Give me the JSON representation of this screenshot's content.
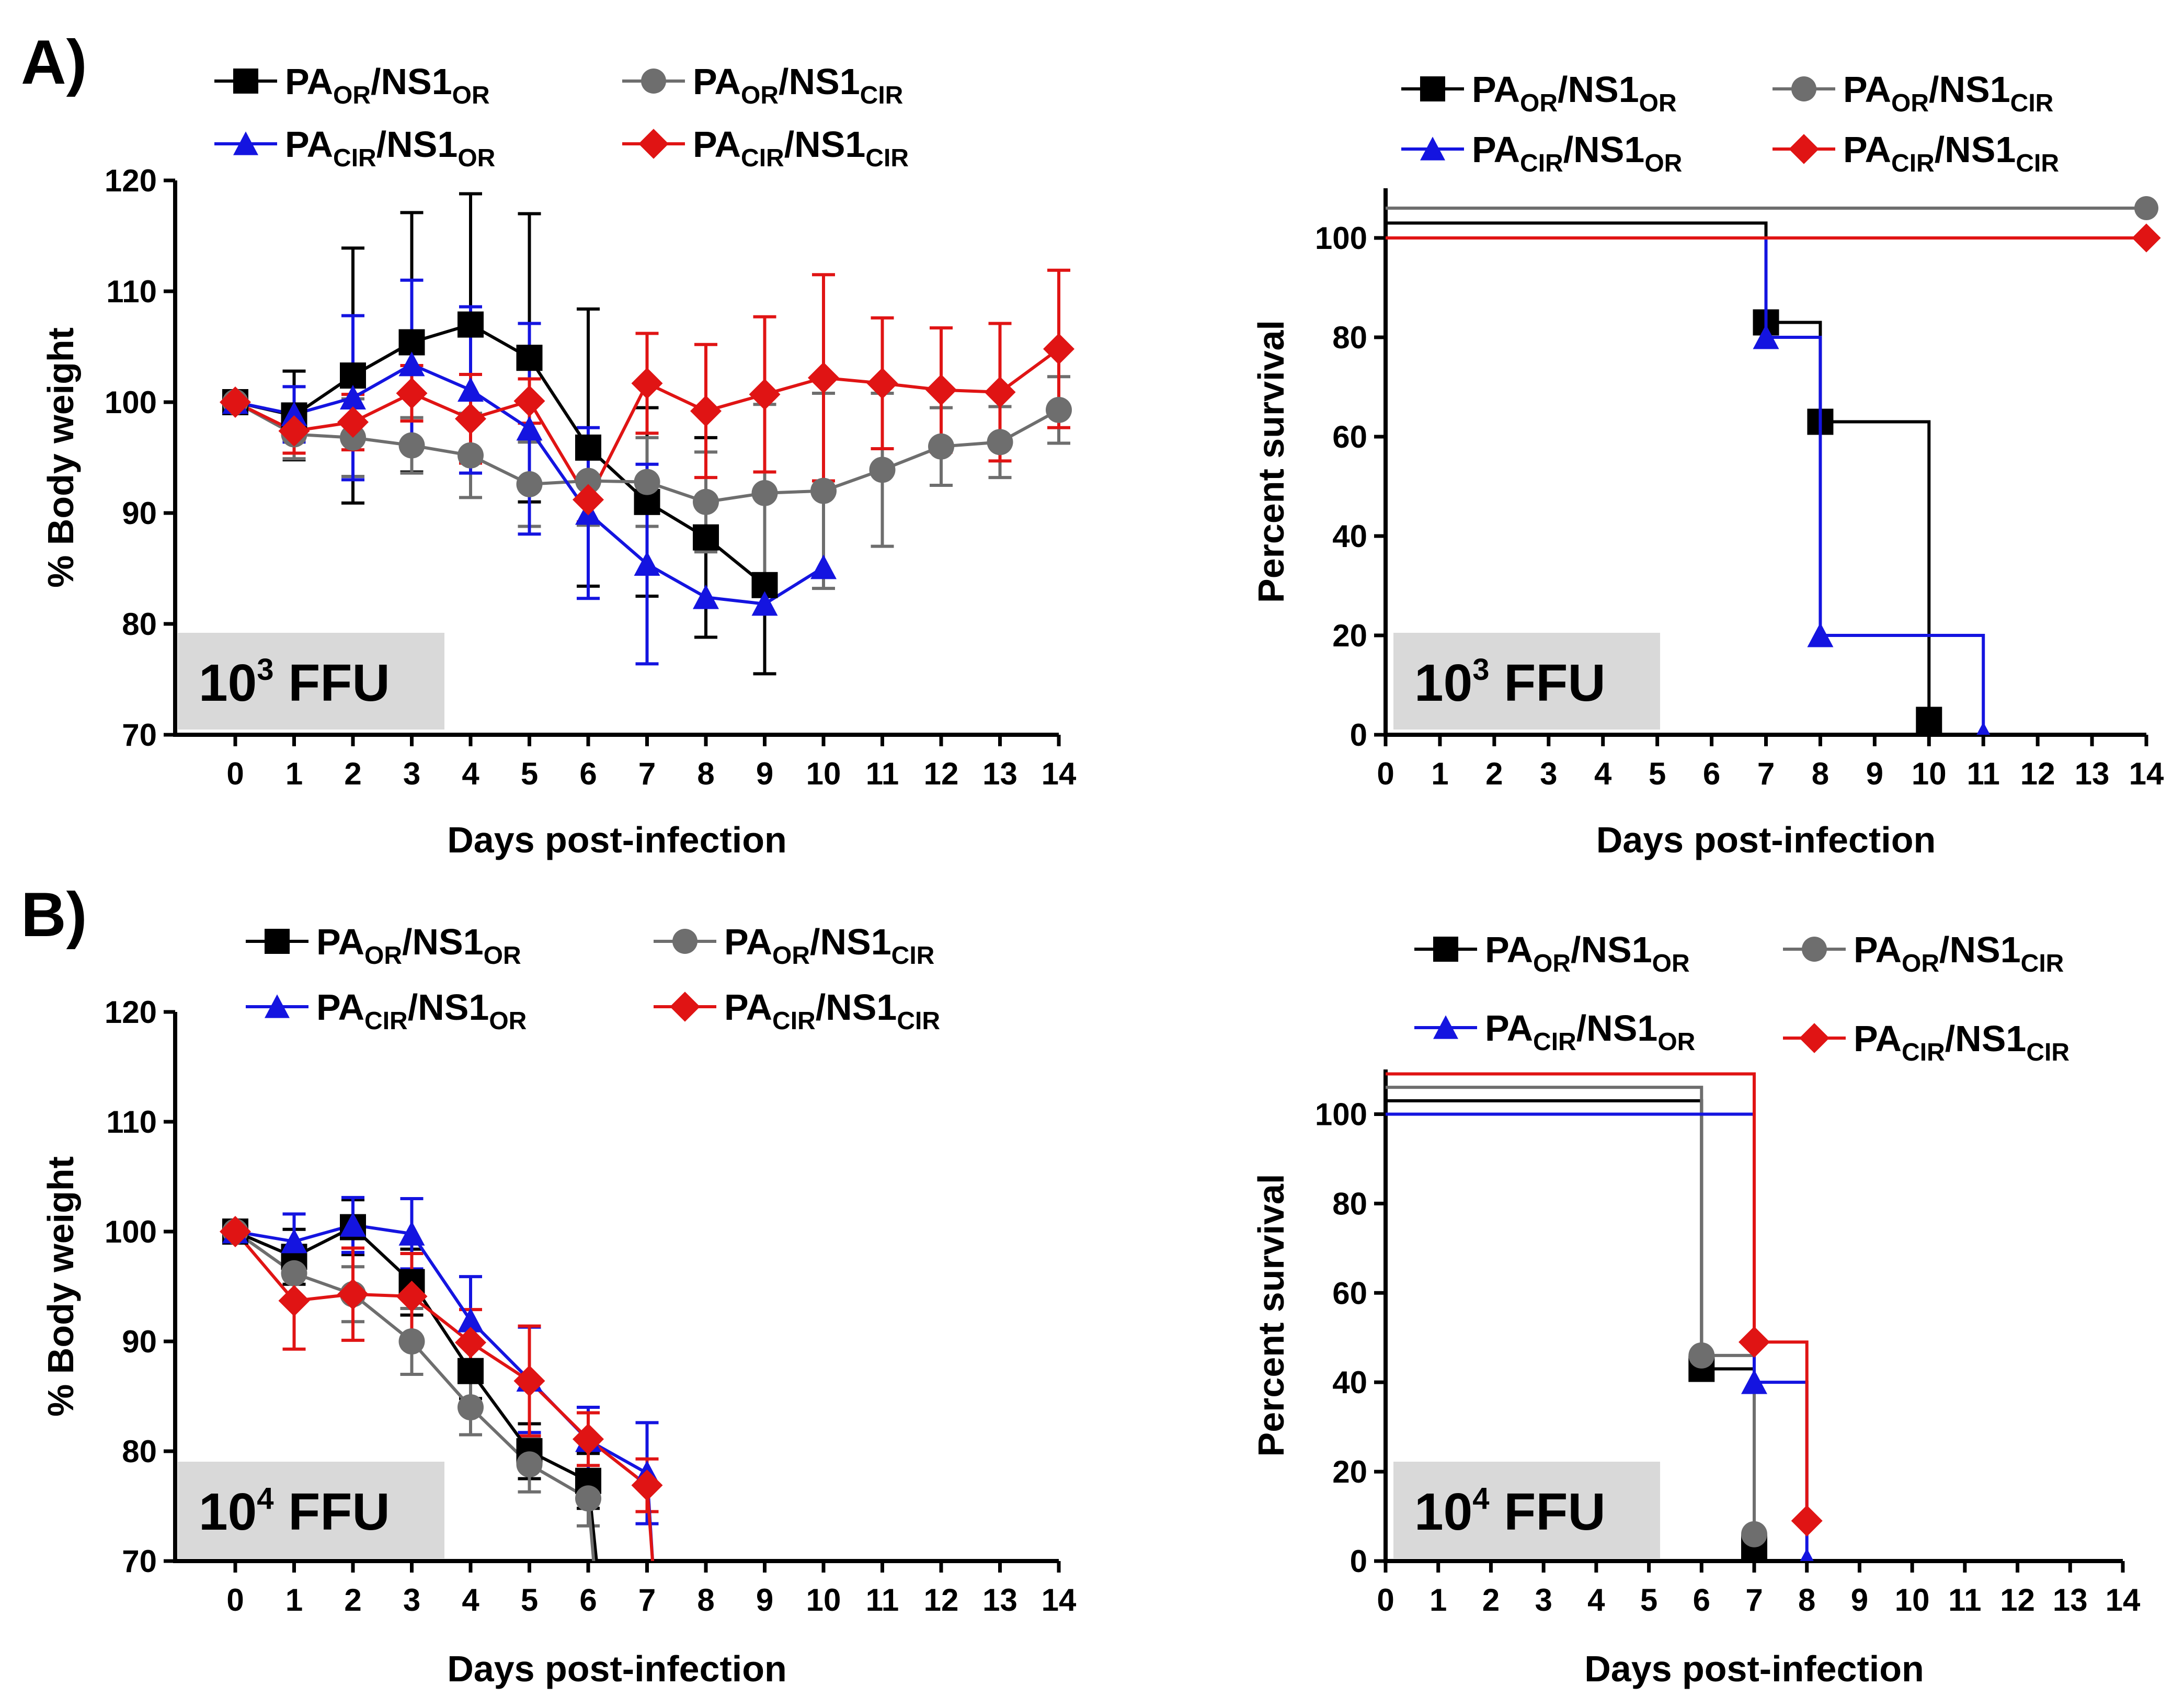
{
  "figure": {
    "panel_labels": [
      "A)",
      "B)"
    ],
    "dose_labels": [
      {
        "base": "10",
        "exp": "3",
        "unit": "FFU"
      },
      {
        "base": "10",
        "exp": "4",
        "unit": "FFU"
      }
    ],
    "legend": [
      {
        "id": "or_or",
        "main1": "PA",
        "sub1": "OR",
        "main2": "/NS1",
        "sub2": "OR",
        "color": "#000000",
        "marker": "square"
      },
      {
        "id": "or_cir",
        "main1": "PA",
        "sub1": "OR",
        "main2": "/NS1",
        "sub2": "CIR",
        "color": "#6e6e6e",
        "marker": "circle"
      },
      {
        "id": "cir_or",
        "main1": "PA",
        "sub1": "CIR",
        "main2": "/NS1",
        "sub2": "OR",
        "color": "#1414e0",
        "marker": "triangle"
      },
      {
        "id": "cir_cir",
        "main1": "PA",
        "sub1": "CIR",
        "main2": "/NS1",
        "sub2": "CIR",
        "color": "#e01414",
        "marker": "diamond"
      }
    ]
  },
  "chart_data": [
    {
      "type": "line",
      "panel": "A",
      "position": "top-left",
      "xlabel": "Days post-infection",
      "ylabel": "% Body weight",
      "xlim": [
        0,
        14
      ],
      "ylim": [
        70,
        120
      ],
      "xticks": [
        "0",
        "1",
        "2",
        "3",
        "4",
        "5",
        "6",
        "7",
        "8",
        "9",
        "10",
        "11",
        "12",
        "13",
        "14"
      ],
      "yticks": [
        "70",
        "80",
        "90",
        "100",
        "110",
        "120"
      ],
      "series": [
        {
          "id": "or_or",
          "x": [
            0,
            1,
            2,
            3,
            4,
            5,
            6,
            7,
            8,
            9
          ],
          "y": [
            100,
            98.8,
            102.4,
            105.4,
            107,
            104,
            95.9,
            91,
            87.8,
            83.5
          ],
          "err": [
            0,
            4,
            11.5,
            11.7,
            11.8,
            13,
            12.5,
            8.5,
            9,
            8
          ]
        },
        {
          "id": "or_cir",
          "x": [
            0,
            1,
            2,
            3,
            4,
            5,
            6,
            7,
            8,
            9,
            10,
            11,
            12,
            13,
            14
          ],
          "y": [
            100,
            97.1,
            96.8,
            96.1,
            95.2,
            92.6,
            92.9,
            92.8,
            91,
            91.8,
            92,
            93.9,
            96,
            96.4,
            99.3
          ],
          "err": [
            0,
            2.2,
            3.5,
            2.5,
            3.8,
            3.8,
            4,
            4,
            4.5,
            8,
            8.8,
            6.9,
            3.5,
            3.2,
            3
          ]
        },
        {
          "id": "cir_or",
          "x": [
            0,
            1,
            2,
            3,
            4,
            5,
            6,
            7,
            8,
            9,
            10
          ],
          "y": [
            100,
            98.9,
            100.4,
            103.4,
            101.1,
            97.6,
            90,
            85.4,
            82.4,
            81.8,
            85.1
          ],
          "err": [
            0,
            2.5,
            7.4,
            7.6,
            7.5,
            9.5,
            7.7,
            9,
            0,
            0,
            0
          ]
        },
        {
          "id": "cir_cir",
          "x": [
            0,
            1,
            2,
            3,
            4,
            5,
            6,
            7,
            8,
            9,
            10,
            11,
            12,
            13,
            14
          ],
          "y": [
            100,
            97.4,
            98.2,
            100.8,
            98.5,
            100.1,
            91.2,
            101.7,
            99.2,
            100.7,
            102.2,
            101.7,
            101.1,
            100.9,
            104.8
          ],
          "err": [
            0,
            2,
            2.5,
            2.5,
            4,
            2,
            2,
            4.5,
            6,
            7,
            9.3,
            5.9,
            5.6,
            6.2,
            7.1
          ]
        }
      ]
    },
    {
      "type": "line",
      "subtype": "survival-step",
      "panel": "A",
      "position": "top-right",
      "xlabel": "Days post-infection",
      "ylabel": "Percent survival",
      "xlim": [
        0,
        14
      ],
      "ylim": [
        0,
        110
      ],
      "xticks": [
        "0",
        "1",
        "2",
        "3",
        "4",
        "5",
        "6",
        "7",
        "8",
        "9",
        "10",
        "11",
        "12",
        "13",
        "14"
      ],
      "yticks": [
        "0",
        "20",
        "40",
        "60",
        "80",
        "100"
      ],
      "series": [
        {
          "id": "or_or",
          "start": 103,
          "steps": [
            [
              7,
              83
            ],
            [
              8,
              63
            ],
            [
              10,
              3
            ]
          ],
          "end_day": 10
        },
        {
          "id": "or_cir",
          "start": 106,
          "steps": [],
          "end_day": 14
        },
        {
          "id": "cir_or",
          "start": 100,
          "steps": [
            [
              7,
              80
            ],
            [
              8,
              20
            ],
            [
              11,
              0
            ]
          ],
          "end_day": 11
        },
        {
          "id": "cir_cir",
          "start": 100,
          "steps": [],
          "end_day": 14
        }
      ]
    },
    {
      "type": "line",
      "panel": "B",
      "position": "bottom-left",
      "xlabel": "Days post-infection",
      "ylabel": "% Body weight",
      "xlim": [
        0,
        14
      ],
      "ylim": [
        70,
        120
      ],
      "xticks": [
        "0",
        "1",
        "2",
        "3",
        "4",
        "5",
        "6",
        "7",
        "8",
        "9",
        "10",
        "11",
        "12",
        "13",
        "14"
      ],
      "yticks": [
        "70",
        "80",
        "90",
        "100",
        "110",
        "120"
      ],
      "series": [
        {
          "id": "or_or",
          "x": [
            0,
            1,
            2,
            3,
            4,
            5,
            6
          ],
          "y": [
            100,
            97.7,
            100.4,
            95.4,
            87.3,
            80,
            77.3
          ],
          "err": [
            0,
            2.5,
            2.5,
            3,
            2.5,
            2.5,
            2.5
          ],
          "drop": [
            6,
            6.15
          ]
        },
        {
          "id": "or_cir",
          "x": [
            0,
            1,
            2,
            3,
            4,
            5,
            6
          ],
          "y": [
            100,
            96.2,
            94.3,
            90,
            84,
            78.8,
            75.7
          ],
          "err": [
            0,
            2.5,
            2.5,
            3,
            2.5,
            2.5,
            2.5
          ],
          "drop": [
            6,
            6.1
          ]
        },
        {
          "id": "cir_or",
          "x": [
            0,
            1,
            2,
            3,
            4,
            5,
            6,
            7
          ],
          "y": [
            100,
            99.1,
            100.6,
            99.8,
            91.9,
            86.5,
            81,
            78
          ],
          "err": [
            0,
            2.5,
            2.5,
            3.2,
            4,
            4.8,
            3,
            4.6
          ],
          "drop": [
            7,
            7.1
          ]
        },
        {
          "id": "cir_cir",
          "x": [
            0,
            1,
            2,
            3,
            4,
            5,
            6,
            7
          ],
          "y": [
            100,
            93.7,
            94.3,
            94.1,
            89.9,
            86.4,
            81.1,
            76.9
          ],
          "err": [
            0,
            4.4,
            4.2,
            3.9,
            3,
            5,
            2.4,
            2.4
          ],
          "drop": [
            7,
            7.1
          ]
        }
      ]
    },
    {
      "type": "line",
      "subtype": "survival-step",
      "panel": "B",
      "position": "bottom-right",
      "xlabel": "Days post-infection",
      "ylabel": "Percent survival",
      "xlim": [
        0,
        14
      ],
      "ylim": [
        0,
        110
      ],
      "xticks": [
        "0",
        "1",
        "2",
        "3",
        "4",
        "5",
        "6",
        "7",
        "8",
        "9",
        "10",
        "11",
        "12",
        "13",
        "14"
      ],
      "yticks": [
        "0",
        "20",
        "40",
        "60",
        "80",
        "100"
      ],
      "series": [
        {
          "id": "or_or",
          "start": 103,
          "steps": [
            [
              6,
              43
            ],
            [
              7,
              3
            ]
          ],
          "end_day": 7
        },
        {
          "id": "or_cir",
          "start": 106,
          "steps": [
            [
              6,
              46
            ],
            [
              7,
              6
            ]
          ],
          "end_day": 7
        },
        {
          "id": "cir_or",
          "start": 100,
          "steps": [
            [
              7,
              40
            ],
            [
              8,
              0
            ]
          ],
          "end_day": 8
        },
        {
          "id": "cir_cir",
          "start": 109,
          "steps": [
            [
              7,
              49
            ],
            [
              8,
              9
            ]
          ],
          "end_day": 8
        }
      ]
    }
  ]
}
